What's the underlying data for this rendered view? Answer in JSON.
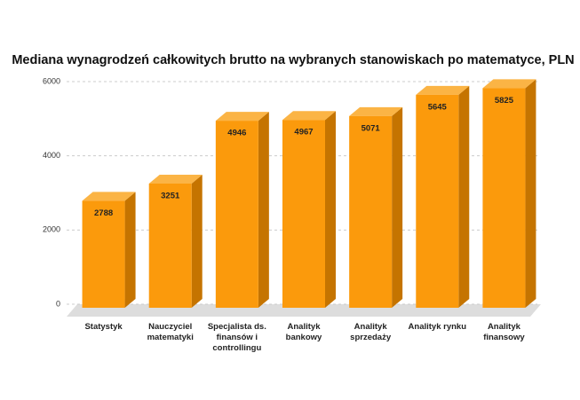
{
  "chart_data": {
    "type": "bar3d",
    "title": "Mediana wynagrodzeń całkowitych brutto na wybranych stanowiskach po matematyce, PLN",
    "categories": [
      "Statystyk",
      "Nauczyciel matematyki",
      "Specjalista ds. finansów i controllingu",
      "Analityk bankowy",
      "Analityk sprzedaży",
      "Analityk rynku",
      "Analityk finansowy"
    ],
    "values": [
      2788,
      3251,
      4946,
      4967,
      5071,
      5645,
      5825
    ],
    "color": "#fb9a0c",
    "ylim": [
      0,
      6000
    ],
    "yticks": [
      0,
      2000,
      4000,
      6000
    ],
    "grid": true
  }
}
